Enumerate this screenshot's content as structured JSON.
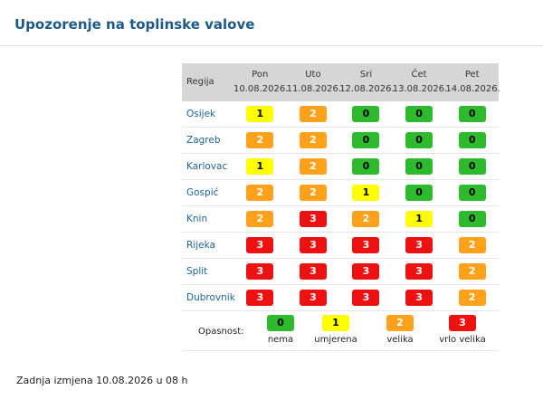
{
  "header": {
    "title": "Upozorenje na toplinske valove"
  },
  "table": {
    "region_header": "Regija",
    "days": [
      {
        "name": "Pon",
        "date": "10.08.2026."
      },
      {
        "name": "Uto",
        "date": "11.08.2026."
      },
      {
        "name": "Sri",
        "date": "12.08.2026."
      },
      {
        "name": "Čet",
        "date": "13.08.2026."
      },
      {
        "name": "Pet",
        "date": "14.08.2026."
      }
    ],
    "rows": [
      {
        "region": "Osijek",
        "levels": [
          1,
          2,
          0,
          0,
          0
        ]
      },
      {
        "region": "Zagreb",
        "levels": [
          2,
          2,
          0,
          0,
          0
        ]
      },
      {
        "region": "Karlovac",
        "levels": [
          1,
          2,
          0,
          0,
          0
        ]
      },
      {
        "region": "Gospić",
        "levels": [
          2,
          2,
          1,
          0,
          0
        ]
      },
      {
        "region": "Knin",
        "levels": [
          2,
          3,
          2,
          1,
          0
        ]
      },
      {
        "region": "Rijeka",
        "levels": [
          3,
          3,
          3,
          3,
          2
        ]
      },
      {
        "region": "Split",
        "levels": [
          3,
          3,
          3,
          3,
          2
        ]
      },
      {
        "region": "Dubrovnik",
        "levels": [
          3,
          3,
          3,
          3,
          2
        ]
      }
    ]
  },
  "legend": {
    "label": "Opasnost:",
    "items": [
      {
        "level": 0,
        "label": "nema",
        "color": "#2dbb2d",
        "text_color": "#000000"
      },
      {
        "level": 1,
        "label": "umjerena",
        "color": "#ffff00",
        "text_color": "#000000"
      },
      {
        "level": 2,
        "label": "velika",
        "color": "#ffa11a",
        "text_color": "#ffffff"
      },
      {
        "level": 3,
        "label": "vrlo velika",
        "color": "#ee1111",
        "text_color": "#ffffff"
      }
    ]
  },
  "footer": "Zadnja izmjena 10.08.2026 u 08 h"
}
